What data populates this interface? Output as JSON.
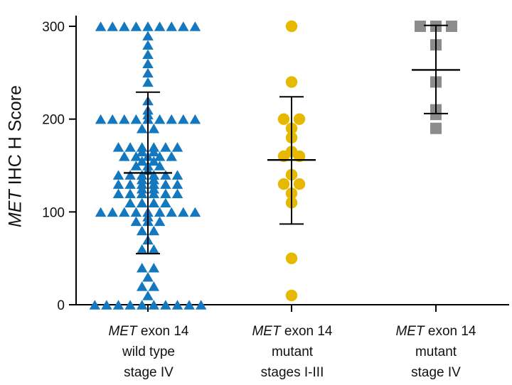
{
  "chart_data": {
    "type": "scatter",
    "ylabel": {
      "italic": "MET",
      "rest": " IHC H Score"
    },
    "ylim": [
      0,
      300
    ],
    "yticks": [
      0,
      100,
      200,
      300
    ],
    "grid": false,
    "categories": [
      {
        "italic": "MET",
        "lines": [
          " exon 14",
          "wild type",
          "stage IV"
        ]
      },
      {
        "italic": "MET",
        "lines": [
          " exon 14",
          "mutant",
          "stages I-III"
        ]
      },
      {
        "italic": "MET",
        "lines": [
          " exon 14",
          "mutant",
          "stage IV"
        ]
      }
    ],
    "series": [
      {
        "marker": "triangle",
        "color": "#1478be",
        "values": [
          300,
          300,
          300,
          300,
          300,
          300,
          300,
          300,
          300,
          290,
          280,
          270,
          260,
          250,
          240,
          220,
          210,
          205,
          200,
          200,
          200,
          200,
          200,
          200,
          200,
          200,
          200,
          190,
          190,
          170,
          170,
          170,
          170,
          170,
          170,
          165,
          165,
          160,
          160,
          160,
          160,
          160,
          155,
          155,
          150,
          150,
          150,
          145,
          140,
          140,
          140,
          140,
          140,
          140,
          135,
          135,
          130,
          130,
          130,
          130,
          130,
          130,
          125,
          125,
          120,
          120,
          120,
          120,
          120,
          120,
          110,
          110,
          110,
          110,
          100,
          100,
          100,
          100,
          100,
          100,
          100,
          100,
          100,
          95,
          90,
          90,
          90,
          80,
          80,
          70,
          60,
          60,
          40,
          40,
          30,
          20,
          20,
          10,
          0,
          0,
          0,
          0,
          0,
          0,
          0,
          0,
          0,
          0
        ],
        "mean": 142,
        "sd_upper": 229,
        "sd_lower": 55
      },
      {
        "marker": "circle",
        "color": "#e6b800",
        "values": [
          300,
          240,
          200,
          200,
          190,
          180,
          165,
          160,
          160,
          140,
          130,
          130,
          120,
          110,
          50,
          10
        ],
        "mean": 156,
        "sd_upper": 224,
        "sd_lower": 87
      },
      {
        "marker": "square",
        "color": "#8c8c8c",
        "values": [
          300,
          300,
          300,
          280,
          240,
          210,
          205,
          190
        ],
        "mean": 253,
        "sd_upper": 301,
        "sd_lower": 206
      }
    ]
  }
}
